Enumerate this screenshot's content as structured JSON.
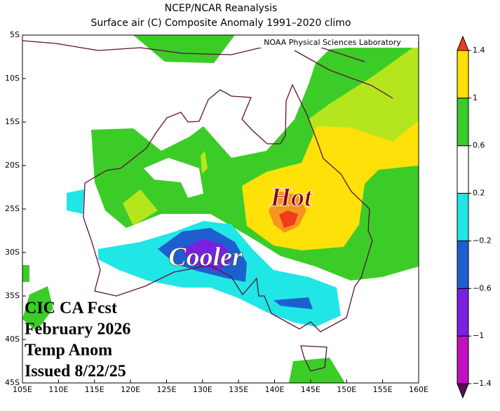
{
  "title": "NCEP/NCAR Reanalysis",
  "subtitle": "Surface air (C) Composite Anomaly 1991–2020 climo",
  "credit": "NOAA Physical Sciences Laboratory",
  "annotations": {
    "hot": "Hot",
    "cooler": "Cooler"
  },
  "forecast_note": [
    "CIC CA Fcst",
    "February 2026",
    "Temp Anom",
    "Issued 8/22/25"
  ],
  "lat_labels": [
    "5S",
    "10S",
    "15S",
    "20S",
    "25S",
    "30S",
    "35S",
    "40S",
    "45S"
  ],
  "lon_labels": [
    "105E",
    "110E",
    "115E",
    "120E",
    "125E",
    "130E",
    "135E",
    "140E",
    "145E",
    "150E",
    "155E",
    "160E"
  ],
  "colorbar": {
    "lim": [
      -1.4,
      1.4
    ],
    "ticks": [
      {
        "value": -1.4,
        "label": "−1.4"
      },
      {
        "value": -1,
        "label": "−1"
      },
      {
        "value": -0.6,
        "label": "−0.6"
      },
      {
        "value": -0.2,
        "label": "−0.2"
      },
      0.2,
      0.6,
      1,
      1.4
    ],
    "colors": [
      "#5a0a5a",
      "#c010c0",
      "#7a20e0",
      "#1e5fd0",
      "#20e6e6",
      "#ffffff",
      "#3ccc28",
      "#ffe10a",
      "#f5941e",
      "#f03c1e"
    ]
  }
}
